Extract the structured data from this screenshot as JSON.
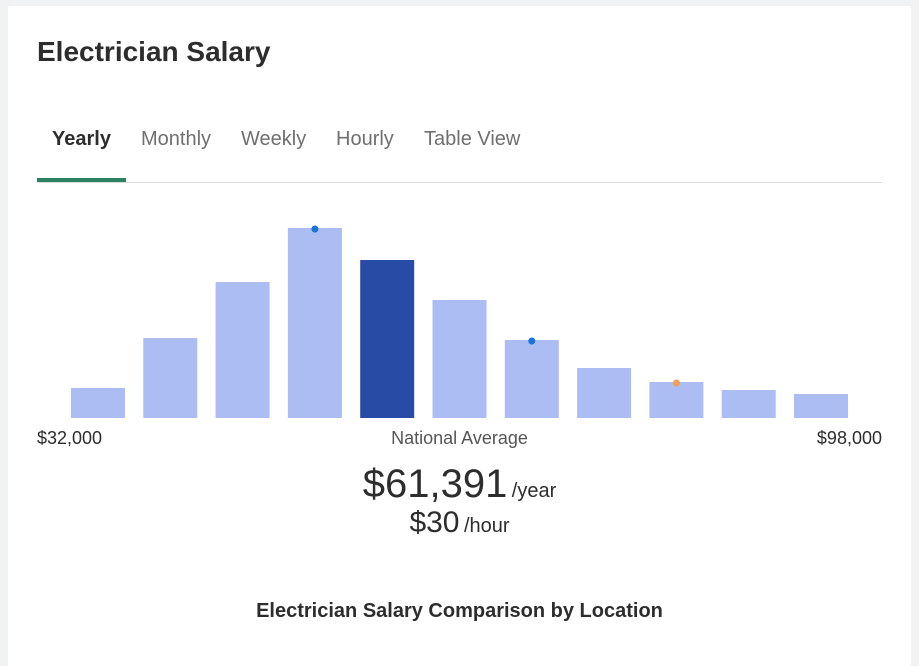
{
  "page": {
    "title": "Electrician Salary"
  },
  "tabs": [
    {
      "label": "Yearly",
      "active": true
    },
    {
      "label": "Monthly",
      "active": false
    },
    {
      "label": "Weekly",
      "active": false
    },
    {
      "label": "Hourly",
      "active": false
    },
    {
      "label": "Table View",
      "active": false
    }
  ],
  "chart_data": {
    "type": "bar",
    "title": "",
    "xlabel": "",
    "ylabel": "",
    "x_range_labels": {
      "min": "$32,000",
      "center": "National Average",
      "max": "$98,000"
    },
    "values": [
      15,
      40,
      68,
      95,
      79,
      59,
      39,
      25,
      18,
      14,
      12
    ],
    "highlight_index": 4,
    "markers": [
      {
        "bar_index": 3,
        "color": "#1a73d9"
      },
      {
        "bar_index": 6,
        "color": "#1a73d9"
      },
      {
        "bar_index": 8,
        "color": "#f0a050"
      }
    ],
    "ylim": [
      0,
      100
    ],
    "grid": false,
    "colors": {
      "bar": "#abbdf3",
      "highlight": "#284ba5"
    }
  },
  "summary": {
    "yearly_value": "$61,391",
    "yearly_unit": "/year",
    "hourly_value": "$30",
    "hourly_unit": "/hour"
  },
  "section": {
    "title": "Electrician Salary Comparison by Location"
  }
}
